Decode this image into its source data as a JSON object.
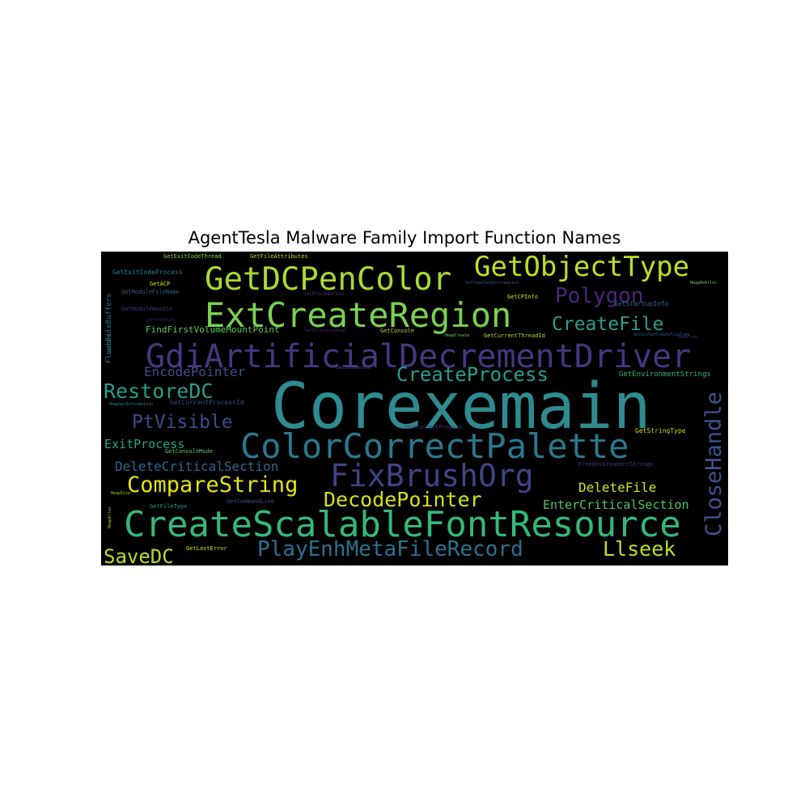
{
  "chart_data": {
    "type": "wordcloud",
    "title": "AgentTesla Malware Family Import Function Names",
    "background": "#000000",
    "words": [
      {
        "text": "Corexemain",
        "color": "#2e8b8f",
        "fs": 78,
        "rot": 0
      },
      {
        "text": "GdiArtificialDecrementDriver",
        "color": "#453781",
        "fs": 40,
        "rot": 0
      },
      {
        "text": "CreateScalableFontResource",
        "color": "#35b779",
        "fs": 44,
        "rot": 0
      },
      {
        "text": "ColorCorrectPalette",
        "color": "#29788e",
        "fs": 42,
        "rot": 0
      },
      {
        "text": "ExtCreateRegion",
        "color": "#7ad151",
        "fs": 42,
        "rot": 0
      },
      {
        "text": "GetDCPenColor",
        "color": "#a8db34",
        "fs": 39,
        "rot": 0
      },
      {
        "text": "GetObjectType",
        "color": "#bddf26",
        "fs": 34,
        "rot": 0
      },
      {
        "text": "FixBrushOrg",
        "color": "#414487",
        "fs": 38,
        "rot": 0
      },
      {
        "text": "CloseHandle",
        "color": "#3b528b",
        "fs": 27,
        "rot": -90
      },
      {
        "text": "PlayEnhMetaFileRecord",
        "color": "#2c728e",
        "fs": 26,
        "rot": 0
      },
      {
        "text": "CompareString",
        "color": "#e3e418",
        "fs": 27,
        "rot": 0
      },
      {
        "text": "DecodePointer",
        "color": "#d2e21b",
        "fs": 25,
        "rot": 0
      },
      {
        "text": "RestoreDC",
        "color": "#2a9d8a",
        "fs": 25,
        "rot": 0
      },
      {
        "text": "CreateProcess",
        "color": "#2a9d8a",
        "fs": 24,
        "rot": 0
      },
      {
        "text": "CreateFile",
        "color": "#2f9c8a",
        "fs": 23,
        "rot": 0
      },
      {
        "text": "Polygon",
        "color": "#482878",
        "fs": 26,
        "rot": 0
      },
      {
        "text": "PtVisible",
        "color": "#3e4a89",
        "fs": 23,
        "rot": 0
      },
      {
        "text": "SaveDC",
        "color": "#b5de2b",
        "fs": 24,
        "rot": 0
      },
      {
        "text": "Llseek",
        "color": "#bddf26",
        "fs": 25,
        "rot": 0
      },
      {
        "text": "DeleteCriticalSection",
        "color": "#31668e",
        "fs": 16,
        "rot": 0
      },
      {
        "text": "EncodePointer",
        "color": "#3b528b",
        "fs": 16,
        "rot": 0
      },
      {
        "text": "ExitProcess",
        "color": "#21a585",
        "fs": 15,
        "rot": 0
      },
      {
        "text": "DeleteFile",
        "color": "#d8e219",
        "fs": 16,
        "rot": 0
      },
      {
        "text": "EnterCriticalSection",
        "color": "#52c569",
        "fs": 15,
        "rot": 0
      },
      {
        "text": "FindFirstVolumeMountPoint",
        "color": "#5ec962",
        "fs": 11,
        "rot": 0
      },
      {
        "text": "GetEnvironmentStrings",
        "color": "#35b779",
        "fs": 9,
        "rot": 0
      },
      {
        "text": "GetStringType",
        "color": "#c2df23",
        "fs": 8,
        "rot": 0
      },
      {
        "text": "GetStartupInfo",
        "color": "#30678d",
        "fs": 8,
        "rot": 0
      },
      {
        "text": "GetExitCodeProcess",
        "color": "#26828e",
        "fs": 8,
        "rot": 0
      },
      {
        "text": "GetExitCodeThread",
        "color": "#84d44b",
        "fs": 7,
        "rot": 0
      },
      {
        "text": "GetFileAttributes",
        "color": "#bddf26",
        "fs": 7,
        "rot": 0
      },
      {
        "text": "GetACP",
        "color": "#d8e219",
        "fs": 7,
        "rot": 0
      },
      {
        "text": "GetModuleFileName",
        "color": "#355f8d",
        "fs": 7,
        "rot": 0
      },
      {
        "text": "GetModuleHandle",
        "color": "#46327e",
        "fs": 7,
        "rot": 0
      },
      {
        "text": "FlushFileBuffers",
        "color": "#2c728e",
        "fs": 9,
        "rot": -90
      },
      {
        "text": "GetCurrentProcessId",
        "color": "#3e4a89",
        "fs": 8,
        "rot": 0
      },
      {
        "text": "GetConsoleMode",
        "color": "#5ec962",
        "fs": 7,
        "rot": 0
      },
      {
        "text": "GetCommandLine",
        "color": "#3e4a89",
        "fs": 7,
        "rot": 0
      },
      {
        "text": "GetFileType",
        "color": "#1f988b",
        "fs": 7,
        "rot": 0
      },
      {
        "text": "GetLastError",
        "color": "#d8e219",
        "fs": 7,
        "rot": 0
      },
      {
        "text": "GetCPInfo",
        "color": "#d8e219",
        "fs": 7,
        "rot": 0
      },
      {
        "text": "GetConsole",
        "color": "#a8db34",
        "fs": 7,
        "rot": 0
      },
      {
        "text": "GetCurrentThreadId",
        "color": "#addc30",
        "fs": 7,
        "rot": 0
      },
      {
        "text": "GetCurrentProcess",
        "color": "#46327e",
        "fs": 7,
        "rot": 0
      },
      {
        "text": "FreeEnvironmentStrings",
        "color": "#443a83",
        "fs": 7,
        "rot": 0
      },
      {
        "text": "GetStdHandle",
        "color": "#3e4989",
        "fs": 6,
        "rot": 0
      },
      {
        "text": "GetProcAddress",
        "color": "#472c7a",
        "fs": 6,
        "rot": 0
      },
      {
        "text": "GetProcessHeap",
        "color": "#482475",
        "fs": 6,
        "rot": 0
      },
      {
        "text": "GetTimeZoneInformation",
        "color": "#3b528b",
        "fs": 5,
        "rot": 0
      },
      {
        "text": "GetSystemTimeAsFileTime",
        "color": "#3b528b",
        "fs": 5,
        "rot": 0
      },
      {
        "text": "GetOEMCP",
        "color": "#25858e",
        "fs": 6,
        "rot": -90
      },
      {
        "text": "HeapSetInformation",
        "color": "#23888e",
        "fs": 5,
        "rot": 0
      },
      {
        "text": "HeapCreate",
        "color": "#6ccd5a",
        "fs": 5,
        "rot": 0
      },
      {
        "text": "HeapSize",
        "color": "#9dd93b",
        "fs": 5,
        "rot": 0
      },
      {
        "text": "HeapFree",
        "color": "#472d7b",
        "fs": 5,
        "rot": 0
      },
      {
        "text": "HeapReAlloc",
        "color": "#73d056",
        "fs": 5,
        "rot": 0
      },
      {
        "text": "HeapAlloc",
        "color": "#addc30",
        "fs": 5,
        "rot": -90
      },
      {
        "text": "GetTickCount",
        "color": "#482475",
        "fs": 5,
        "rot": 0
      }
    ]
  }
}
